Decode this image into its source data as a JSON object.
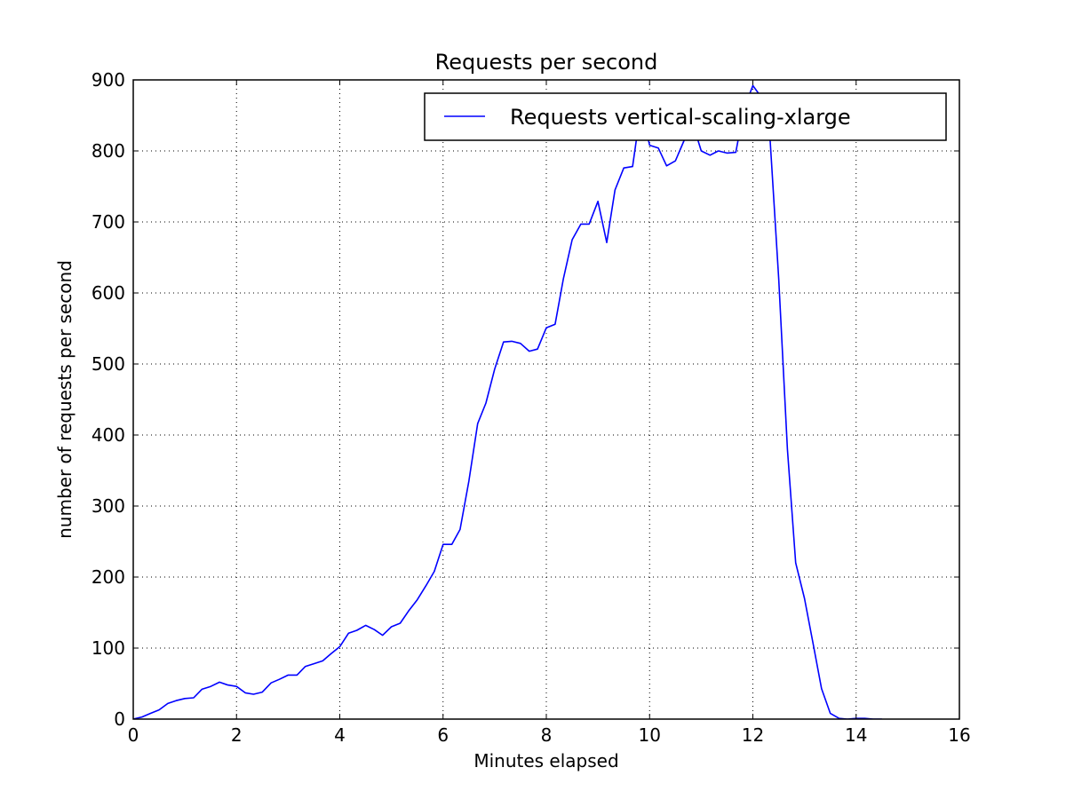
{
  "chart_data": {
    "type": "line",
    "title": "Requests per second",
    "xlabel": "Minutes elapsed",
    "ylabel": "number of requests per second",
    "xlim": [
      0,
      16
    ],
    "ylim": [
      0,
      900
    ],
    "xticks": [
      0,
      2,
      4,
      6,
      8,
      10,
      12,
      14,
      16
    ],
    "yticks": [
      0,
      100,
      200,
      300,
      400,
      500,
      600,
      700,
      800,
      900
    ],
    "grid": true,
    "legend_position": "top-right",
    "series": [
      {
        "name": "Requests vertical-scaling-xlarge",
        "color": "#0000ff",
        "x": [
          0.0,
          0.17,
          0.33,
          0.5,
          0.67,
          0.83,
          1.0,
          1.17,
          1.33,
          1.5,
          1.67,
          1.83,
          2.0,
          2.17,
          2.33,
          2.5,
          2.67,
          2.83,
          3.0,
          3.17,
          3.33,
          3.5,
          3.67,
          3.83,
          4.0,
          4.17,
          4.33,
          4.5,
          4.67,
          4.83,
          5.0,
          5.17,
          5.33,
          5.5,
          5.67,
          5.83,
          6.0,
          6.17,
          6.33,
          6.5,
          6.67,
          6.83,
          7.0,
          7.17,
          7.33,
          7.5,
          7.67,
          7.83,
          8.0,
          8.17,
          8.33,
          8.5,
          8.67,
          8.83,
          9.0,
          9.17,
          9.33,
          9.5,
          9.67,
          9.83,
          10.0,
          10.17,
          10.33,
          10.5,
          10.67,
          10.83,
          11.0,
          11.17,
          11.33,
          11.5,
          11.67,
          11.83,
          12.0,
          12.17,
          12.33,
          12.5,
          12.67,
          12.83,
          13.0,
          13.17,
          13.33,
          13.5,
          13.67,
          13.83,
          14.0,
          14.17,
          14.33,
          14.5
        ],
        "y": [
          0,
          3,
          8,
          13,
          22,
          26,
          29,
          30,
          42,
          46,
          52,
          48,
          46,
          37,
          35,
          38,
          51,
          56,
          62,
          62,
          74,
          78,
          82,
          92,
          102,
          121,
          125,
          132,
          126,
          118,
          130,
          135,
          152,
          168,
          188,
          208,
          246,
          246,
          267,
          335,
          416,
          445,
          493,
          531,
          532,
          529,
          518,
          521,
          551,
          556,
          620,
          675,
          697,
          697,
          729,
          671,
          745,
          776,
          778,
          860,
          808,
          804,
          779,
          786,
          815,
          840,
          800,
          794,
          800,
          797,
          798,
          860,
          892,
          875,
          820,
          620,
          380,
          220,
          170,
          105,
          43,
          8,
          1,
          0,
          1,
          1,
          0,
          0
        ]
      }
    ]
  }
}
